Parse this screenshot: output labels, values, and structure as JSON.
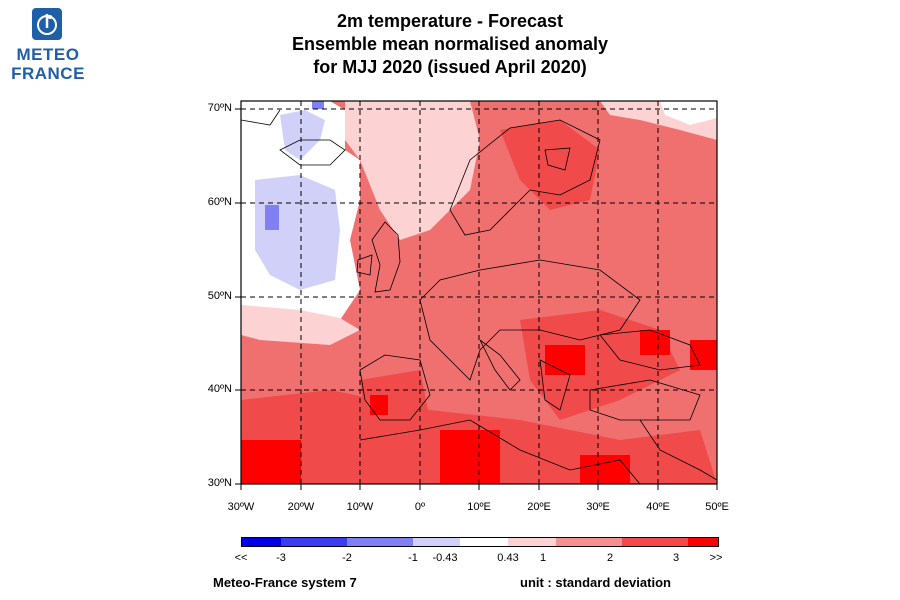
{
  "logo": {
    "line1": "METEO",
    "line2": "FRANCE",
    "icon": "meteo-france-logo-icon",
    "color": "#1f5fa8"
  },
  "title": {
    "line1": "2m temperature   -   Forecast",
    "line2": "Ensemble mean normalised anomaly",
    "line3": "for MJJ 2020   (issued April 2020)"
  },
  "map": {
    "lon_range": [
      -30,
      50
    ],
    "lat_range": [
      30,
      70
    ],
    "lat_labels": [
      "70ºN",
      "60ºN",
      "50ºN",
      "40ºN",
      "30ºN"
    ],
    "lat_values": [
      70,
      60,
      50,
      40,
      30
    ],
    "lon_labels": [
      "30ºW",
      "20ºW",
      "10ºW",
      "0º",
      "10ºE",
      "20ºE",
      "30ºE",
      "40ºE",
      "50ºE"
    ],
    "lon_values": [
      -30,
      -20,
      -10,
      0,
      10,
      20,
      30,
      40,
      50
    ],
    "grid": "dashed"
  },
  "colorbar": {
    "labels": [
      "<<",
      "-3",
      "-2",
      "-1",
      "-0.43",
      "0.43",
      "1",
      "2",
      "3",
      ">>"
    ],
    "colors": [
      "#0000e6",
      "#3c3cf0",
      "#8080f2",
      "#d0d0f8",
      "#ffffff",
      "#fcd2d2",
      "#f59090",
      "#f04a4a",
      "#ff0000"
    ]
  },
  "footer": {
    "system": "Meteo-France system 7",
    "unit": "unit : standard deviation"
  }
}
